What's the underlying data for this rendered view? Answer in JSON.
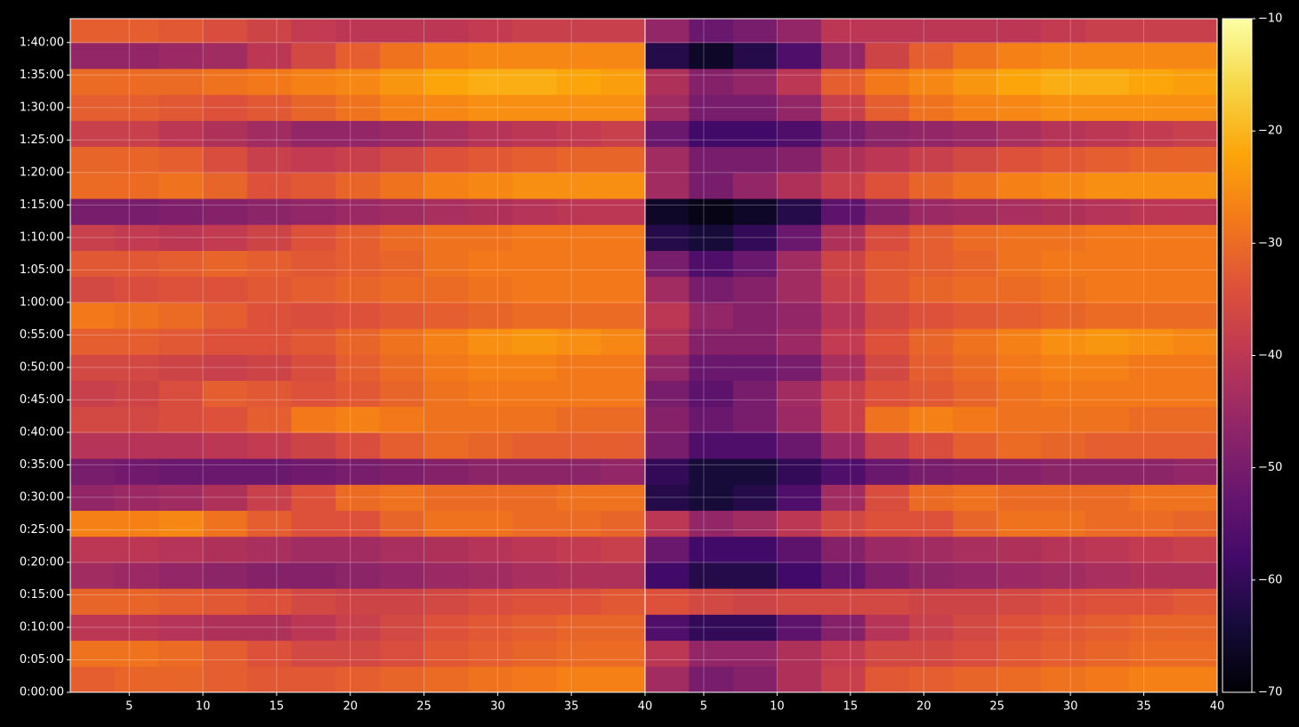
{
  "chart_data": [
    {
      "type": "heatmap",
      "x": [
        2.5,
        5.5,
        8.5,
        11.5,
        14.5,
        17.5,
        20.5,
        23.5,
        26.5,
        29.5,
        32.5,
        35.5,
        38.5
      ],
      "y": [
        120,
        360,
        600,
        840,
        1080,
        1320,
        1560,
        1800,
        2040,
        2280,
        2520,
        2760,
        3000,
        3240,
        3480,
        3720,
        3960,
        4200,
        4440,
        4680,
        4920,
        5160,
        5400,
        5640,
        5880,
        6120
      ],
      "xlim": [
        1,
        40
      ],
      "ylim": [
        0,
        6220
      ],
      "xticks": [
        5,
        10,
        15,
        20,
        25,
        30,
        35,
        40
      ],
      "yticks": [
        {
          "value": 0,
          "label": "0:00:00"
        },
        {
          "value": 300,
          "label": "0:05:00"
        },
        {
          "value": 600,
          "label": "0:10:00"
        },
        {
          "value": 900,
          "label": "0:15:00"
        },
        {
          "value": 1200,
          "label": "0:20:00"
        },
        {
          "value": 1500,
          "label": "0:25:00"
        },
        {
          "value": 1800,
          "label": "0:30:00"
        },
        {
          "value": 2100,
          "label": "0:35:00"
        },
        {
          "value": 2400,
          "label": "0:40:00"
        },
        {
          "value": 2700,
          "label": "0:45:00"
        },
        {
          "value": 3000,
          "label": "0:50:00"
        },
        {
          "value": 3300,
          "label": "0:55:00"
        },
        {
          "value": 3600,
          "label": "1:00:00"
        },
        {
          "value": 3900,
          "label": "1:05:00"
        },
        {
          "value": 4200,
          "label": "1:10:00"
        },
        {
          "value": 4500,
          "label": "1:15:00"
        },
        {
          "value": 4800,
          "label": "1:20:00"
        },
        {
          "value": 5100,
          "label": "1:25:00"
        },
        {
          "value": 5400,
          "label": "1:30:00"
        },
        {
          "value": 5700,
          "label": "1:35:00"
        },
        {
          "value": 6000,
          "label": "1:40:00"
        }
      ],
      "grid": true,
      "cmap": "inferno",
      "vlim": [
        -70,
        -10
      ],
      "values": [
        [
          -32,
          -31,
          -31,
          -32,
          -33,
          -33,
          -32,
          -31,
          -30,
          -29,
          -28,
          -27,
          -27
        ],
        [
          -29,
          -29,
          -30,
          -32,
          -34,
          -36,
          -36,
          -35,
          -33,
          -32,
          -31,
          -30,
          -30
        ],
        [
          -40,
          -40,
          -41,
          -42,
          -42,
          -40,
          -38,
          -36,
          -34,
          -33,
          -32,
          -31,
          -31
        ],
        [
          -31,
          -31,
          -32,
          -33,
          -34,
          -36,
          -37,
          -37,
          -36,
          -35,
          -34,
          -34,
          -33
        ],
        [
          -44,
          -45,
          -46,
          -47,
          -48,
          -48,
          -47,
          -46,
          -45,
          -44,
          -43,
          -42,
          -42
        ],
        [
          -40,
          -40,
          -41,
          -42,
          -43,
          -44,
          -44,
          -43,
          -42,
          -41,
          -40,
          -39,
          -38
        ],
        [
          -27,
          -27,
          -26,
          -29,
          -32,
          -34,
          -34,
          -31,
          -29,
          -29,
          -30,
          -30,
          -31
        ],
        [
          -46,
          -45,
          -44,
          -42,
          -38,
          -34,
          -30,
          -29,
          -30,
          -30,
          -30,
          -29,
          -29
        ],
        [
          -50,
          -51,
          -52,
          -52,
          -52,
          -51,
          -50,
          -49,
          -48,
          -47,
          -47,
          -47,
          -46
        ],
        [
          -41,
          -41,
          -41,
          -40,
          -39,
          -37,
          -35,
          -32,
          -30,
          -31,
          -32,
          -32,
          -32
        ],
        [
          -36,
          -36,
          -35,
          -34,
          -32,
          -28,
          -27,
          -28,
          -29,
          -29,
          -29,
          -30,
          -30
        ],
        [
          -38,
          -37,
          -35,
          -32,
          -33,
          -34,
          -33,
          -31,
          -29,
          -28,
          -28,
          -28,
          -28
        ],
        [
          -36,
          -36,
          -37,
          -38,
          -37,
          -35,
          -32,
          -30,
          -28,
          -27,
          -27,
          -28,
          -28
        ],
        [
          -32,
          -32,
          -33,
          -34,
          -34,
          -33,
          -31,
          -29,
          -27,
          -25,
          -24,
          -25,
          -26
        ],
        [
          -28,
          -29,
          -30,
          -32,
          -34,
          -35,
          -34,
          -33,
          -32,
          -31,
          -30,
          -30,
          -30
        ],
        [
          -36,
          -35,
          -34,
          -34,
          -33,
          -32,
          -31,
          -30,
          -30,
          -29,
          -28,
          -28,
          -28
        ],
        [
          -33,
          -33,
          -32,
          -31,
          -32,
          -33,
          -32,
          -31,
          -29,
          -28,
          -28,
          -28,
          -28
        ],
        [
          -38,
          -39,
          -40,
          -39,
          -37,
          -34,
          -32,
          -30,
          -29,
          -29,
          -28,
          -28,
          -28
        ],
        [
          -50,
          -50,
          -49,
          -48,
          -47,
          -46,
          -45,
          -44,
          -43,
          -42,
          -41,
          -40,
          -40
        ],
        [
          -30,
          -30,
          -29,
          -31,
          -34,
          -33,
          -31,
          -29,
          -27,
          -26,
          -25,
          -25,
          -25
        ],
        [
          -31,
          -31,
          -32,
          -35,
          -38,
          -39,
          -38,
          -36,
          -34,
          -33,
          -32,
          -31,
          -31
        ],
        [
          -38,
          -38,
          -40,
          -42,
          -44,
          -46,
          -46,
          -45,
          -43,
          -41,
          -40,
          -39,
          -38
        ],
        [
          -32,
          -32,
          -33,
          -34,
          -33,
          -31,
          -29,
          -27,
          -26,
          -25,
          -25,
          -25,
          -25
        ],
        [
          -30,
          -30,
          -30,
          -29,
          -28,
          -27,
          -26,
          -24,
          -22,
          -21,
          -21,
          -22,
          -23
        ],
        [
          -46,
          -46,
          -45,
          -44,
          -40,
          -36,
          -32,
          -29,
          -27,
          -26,
          -26,
          -26,
          -26
        ],
        [
          -32,
          -32,
          -33,
          -35,
          -37,
          -39,
          -40,
          -40,
          -40,
          -39,
          -38,
          -38,
          -38
        ]
      ]
    },
    {
      "type": "heatmap",
      "x": [
        2.5,
        5.5,
        8.5,
        11.5,
        14.5,
        17.5,
        20.5,
        23.5,
        26.5,
        29.5,
        32.5,
        35.5,
        38.5
      ],
      "y": [
        120,
        360,
        600,
        840,
        1080,
        1320,
        1560,
        1800,
        2040,
        2280,
        2520,
        2760,
        3000,
        3240,
        3480,
        3720,
        3960,
        4200,
        4440,
        4680,
        4920,
        5160,
        5400,
        5640,
        5880,
        6120
      ],
      "xlim": [
        1,
        40
      ],
      "ylim": [
        0,
        6220
      ],
      "xticks": [
        5,
        10,
        15,
        20,
        25,
        30,
        35,
        40
      ],
      "grid": true,
      "cmap": "inferno",
      "vlim": [
        -70,
        -10
      ],
      "colorbar": {
        "ticks": [
          {
            "value": -10,
            "label": "−10"
          },
          {
            "value": -20,
            "label": "−20"
          },
          {
            "value": -30,
            "label": "−30"
          },
          {
            "value": -40,
            "label": "−40"
          },
          {
            "value": -50,
            "label": "−50"
          },
          {
            "value": -60,
            "label": "−60"
          },
          {
            "value": -70,
            "label": "−70"
          }
        ]
      },
      "values": [
        [
          -44,
          -50,
          -48,
          -42,
          -38,
          -33,
          -32,
          -31,
          -30,
          -29,
          -28,
          -27,
          -27
        ],
        [
          -40,
          -46,
          -46,
          -42,
          -39,
          -36,
          -36,
          -35,
          -33,
          -32,
          -31,
          -30,
          -30
        ],
        [
          -56,
          -60,
          -60,
          -54,
          -48,
          -41,
          -38,
          -36,
          -34,
          -33,
          -32,
          -31,
          -31
        ],
        [
          -34,
          -36,
          -37,
          -36,
          -36,
          -36,
          -37,
          -37,
          -36,
          -35,
          -34,
          -34,
          -33
        ],
        [
          -58,
          -62,
          -62,
          -58,
          -53,
          -49,
          -47,
          -46,
          -45,
          -44,
          -43,
          -42,
          -42
        ],
        [
          -52,
          -58,
          -58,
          -54,
          -48,
          -45,
          -44,
          -43,
          -42,
          -41,
          -40,
          -39,
          -38
        ],
        [
          -40,
          -46,
          -44,
          -40,
          -36,
          -34,
          -34,
          -31,
          -29,
          -29,
          -30,
          -30,
          -31
        ],
        [
          -62,
          -64,
          -62,
          -56,
          -44,
          -35,
          -30,
          -29,
          -30,
          -30,
          -30,
          -29,
          -29
        ],
        [
          -60,
          -64,
          -64,
          -60,
          -56,
          -52,
          -50,
          -49,
          -48,
          -47,
          -47,
          -47,
          -46
        ],
        [
          -50,
          -56,
          -56,
          -52,
          -45,
          -38,
          -35,
          -32,
          -30,
          -31,
          -32,
          -32,
          -32
        ],
        [
          -48,
          -52,
          -50,
          -45,
          -38,
          -29,
          -27,
          -28,
          -29,
          -29,
          -29,
          -30,
          -30
        ],
        [
          -50,
          -54,
          -50,
          -44,
          -38,
          -34,
          -33,
          -31,
          -29,
          -28,
          -28,
          -28,
          -28
        ],
        [
          -46,
          -52,
          -52,
          -50,
          -43,
          -36,
          -32,
          -30,
          -28,
          -27,
          -27,
          -28,
          -28
        ],
        [
          -42,
          -48,
          -48,
          -45,
          -39,
          -34,
          -31,
          -29,
          -27,
          -25,
          -24,
          -25,
          -26
        ],
        [
          -40,
          -46,
          -48,
          -46,
          -41,
          -36,
          -34,
          -33,
          -32,
          -31,
          -30,
          -30,
          -30
        ],
        [
          -44,
          -50,
          -48,
          -44,
          -38,
          -33,
          -31,
          -30,
          -30,
          -29,
          -28,
          -28,
          -28
        ],
        [
          -50,
          -56,
          -52,
          -44,
          -37,
          -33,
          -32,
          -31,
          -29,
          -28,
          -28,
          -28,
          -28
        ],
        [
          -62,
          -64,
          -60,
          -52,
          -42,
          -35,
          -32,
          -30,
          -29,
          -29,
          -28,
          -28,
          -28
        ],
        [
          -66,
          -68,
          -66,
          -62,
          -54,
          -48,
          -45,
          -44,
          -43,
          -42,
          -41,
          -40,
          -40
        ],
        [
          -44,
          -50,
          -46,
          -42,
          -38,
          -34,
          -31,
          -29,
          -27,
          -26,
          -25,
          -25,
          -25
        ],
        [
          -44,
          -50,
          -50,
          -48,
          -42,
          -40,
          -38,
          -36,
          -34,
          -33,
          -32,
          -31,
          -31
        ],
        [
          -52,
          -58,
          -58,
          -56,
          -50,
          -47,
          -46,
          -45,
          -43,
          -41,
          -40,
          -39,
          -38
        ],
        [
          -44,
          -50,
          -50,
          -46,
          -38,
          -32,
          -29,
          -27,
          -26,
          -25,
          -25,
          -25,
          -25
        ],
        [
          -42,
          -48,
          -46,
          -40,
          -32,
          -28,
          -26,
          -24,
          -22,
          -21,
          -21,
          -22,
          -23
        ],
        [
          -62,
          -66,
          -62,
          -56,
          -46,
          -37,
          -32,
          -29,
          -27,
          -26,
          -26,
          -26,
          -26
        ],
        [
          -46,
          -52,
          -50,
          -46,
          -40,
          -40,
          -40,
          -40,
          -40,
          -39,
          -38,
          -38,
          -38
        ]
      ]
    }
  ]
}
